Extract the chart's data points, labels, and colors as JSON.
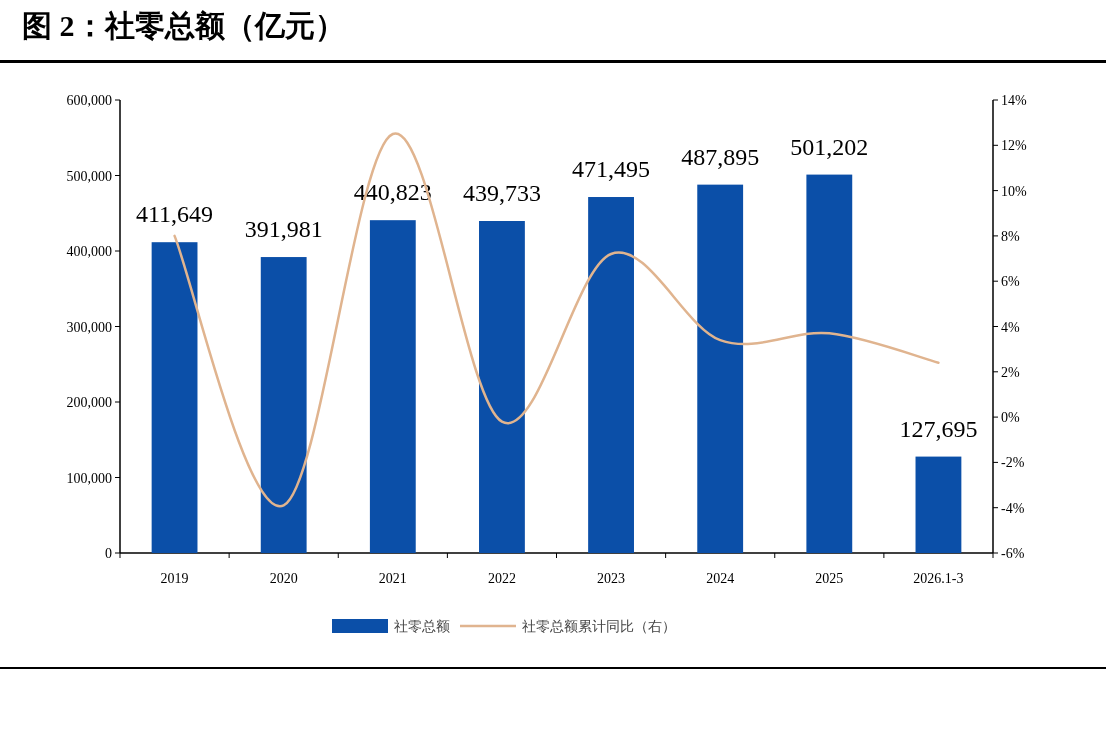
{
  "chart_data": {
    "type": "bar",
    "title": "图 2：社零总额（亿元）",
    "categories": [
      "2019",
      "2020",
      "2021",
      "2022",
      "2023",
      "2024",
      "2025",
      "2026.1-3"
    ],
    "series": [
      {
        "name": "社零总额",
        "color": "#0b4fa8",
        "values": [
          411649,
          391981,
          440823,
          439733,
          471495,
          487895,
          501202,
          127695
        ],
        "value_labels": [
          "411,649",
          "391,981",
          "440,823",
          "439,733",
          "471,495",
          "487,895",
          "501,202",
          "127,695"
        ]
      },
      {
        "name": "社零总额累计同比（右）",
        "type": "line",
        "axis": "y2",
        "color": "#e0b48f",
        "values": [
          8.0,
          -3.9,
          12.5,
          -0.2,
          7.2,
          3.4,
          3.7,
          2.4
        ]
      }
    ],
    "ylim": [
      0,
      600000
    ],
    "yticks": [
      0,
      {
        "value": 100000,
        "label": "100,000"
      },
      {
        "value": 200000,
        "label": "200,000"
      },
      {
        "value": 300000,
        "label": "300,000"
      },
      {
        "value": 400000,
        "label": "400,000"
      },
      {
        "value": 500000,
        "label": "500,000"
      },
      {
        "value": 600000,
        "label": "600,000"
      }
    ],
    "y2lim": [
      -6,
      14
    ],
    "y2ticks": [
      {
        "value": -6,
        "label": "-6%"
      },
      {
        "value": -4,
        "label": "-4%"
      },
      {
        "value": -2,
        "label": "-2%"
      },
      {
        "value": 0,
        "label": "0%"
      },
      {
        "value": 2,
        "label": "2%"
      },
      {
        "value": 4,
        "label": "4%"
      },
      {
        "value": 6,
        "label": "6%"
      },
      {
        "value": 8,
        "label": "8%"
      },
      {
        "value": 10,
        "label": "10%"
      },
      {
        "value": 12,
        "label": "12%"
      },
      {
        "value": 14,
        "label": "14%"
      }
    ],
    "legend": "bottom",
    "grid": false
  }
}
